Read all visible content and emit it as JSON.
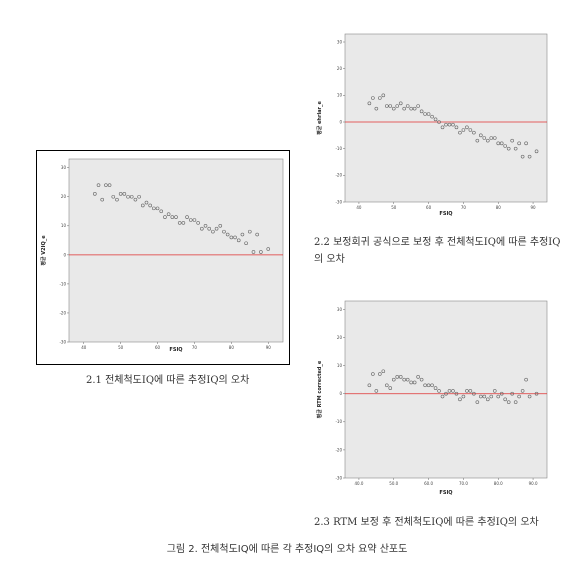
{
  "figure_caption": "그림 2. 전체척도IQ에 따른 각 추정IQ의 오차 요약 산포도",
  "panels": [
    {
      "id": "p1",
      "caption": "2.1 전체척도IQ에 따른 추정IQ의 오차"
    },
    {
      "id": "p2",
      "caption": "2.2 보정회귀 공식으로 보정 후 전체척도IQ에 따른 추정IQ의 오차"
    },
    {
      "id": "p3",
      "caption": "2.3 RTM 보정 후 전체척도IQ에 따른 추정IQ의 오차"
    }
  ],
  "chart_data": [
    {
      "type": "scatter",
      "title": "",
      "xlabel": "FSIQ",
      "ylabel": "평균 V2IQ_e",
      "xlim": [
        36,
        94
      ],
      "ylim": [
        -30,
        33
      ],
      "xticks": [
        40,
        50,
        60,
        70,
        80,
        90
      ],
      "xtick_labels": [
        "40",
        "50",
        "60",
        "70",
        "80",
        "90"
      ],
      "yticks": [
        -30,
        -20,
        -10,
        0,
        10,
        20,
        30
      ],
      "reference_line": 0,
      "colors": {
        "points": "#666666",
        "reference": "#e03030",
        "plot_bg": "#e9e9e9"
      },
      "points": [
        [
          43,
          21
        ],
        [
          44,
          24
        ],
        [
          45,
          19
        ],
        [
          46,
          24
        ],
        [
          47,
          24
        ],
        [
          48,
          20
        ],
        [
          49,
          19
        ],
        [
          50,
          21
        ],
        [
          51,
          21
        ],
        [
          52,
          20
        ],
        [
          53,
          20
        ],
        [
          54,
          19
        ],
        [
          55,
          20
        ],
        [
          56,
          17
        ],
        [
          57,
          18
        ],
        [
          58,
          17
        ],
        [
          59,
          16
        ],
        [
          60,
          16
        ],
        [
          61,
          15
        ],
        [
          62,
          13
        ],
        [
          63,
          14
        ],
        [
          64,
          13
        ],
        [
          65,
          13
        ],
        [
          66,
          11
        ],
        [
          67,
          11
        ],
        [
          68,
          13
        ],
        [
          69,
          12
        ],
        [
          70,
          12
        ],
        [
          71,
          11
        ],
        [
          72,
          9
        ],
        [
          73,
          10
        ],
        [
          74,
          9
        ],
        [
          75,
          8
        ],
        [
          76,
          9
        ],
        [
          77,
          10
        ],
        [
          78,
          8
        ],
        [
          79,
          7
        ],
        [
          80,
          6
        ],
        [
          81,
          6
        ],
        [
          82,
          5
        ],
        [
          83,
          7
        ],
        [
          84,
          4
        ],
        [
          85,
          8
        ],
        [
          86,
          1
        ],
        [
          87,
          7
        ],
        [
          88,
          1
        ],
        [
          90,
          2
        ]
      ]
    },
    {
      "type": "scatter",
      "title": "",
      "xlabel": "FSIQ",
      "ylabel": "평균 ehrlar_e",
      "xlim": [
        36,
        94
      ],
      "ylim": [
        -30,
        33
      ],
      "xticks": [
        40,
        50,
        60,
        70,
        80,
        90
      ],
      "xtick_labels": [
        "40",
        "50",
        "60",
        "70",
        "80",
        "90"
      ],
      "yticks": [
        -30,
        -20,
        -10,
        0,
        10,
        20,
        30
      ],
      "reference_line": 0,
      "colors": {
        "points": "#666666",
        "reference": "#e03030",
        "plot_bg": "#e9e9e9"
      },
      "points": [
        [
          43,
          7
        ],
        [
          44,
          9
        ],
        [
          45,
          5
        ],
        [
          46,
          9
        ],
        [
          47,
          10
        ],
        [
          48,
          6
        ],
        [
          49,
          6
        ],
        [
          50,
          5
        ],
        [
          51,
          6
        ],
        [
          52,
          7
        ],
        [
          53,
          5
        ],
        [
          54,
          6
        ],
        [
          55,
          5
        ],
        [
          56,
          5
        ],
        [
          57,
          6
        ],
        [
          58,
          4
        ],
        [
          59,
          3
        ],
        [
          60,
          3
        ],
        [
          61,
          2
        ],
        [
          62,
          1
        ],
        [
          63,
          0
        ],
        [
          64,
          -2
        ],
        [
          65,
          -1
        ],
        [
          66,
          -1
        ],
        [
          67,
          -1
        ],
        [
          68,
          -2
        ],
        [
          69,
          -4
        ],
        [
          70,
          -3
        ],
        [
          71,
          -2
        ],
        [
          72,
          -3
        ],
        [
          73,
          -4
        ],
        [
          74,
          -7
        ],
        [
          75,
          -5
        ],
        [
          76,
          -6
        ],
        [
          77,
          -7
        ],
        [
          78,
          -6
        ],
        [
          79,
          -6
        ],
        [
          80,
          -8
        ],
        [
          81,
          -8
        ],
        [
          82,
          -9
        ],
        [
          83,
          -10
        ],
        [
          84,
          -7
        ],
        [
          85,
          -10
        ],
        [
          86,
          -8
        ],
        [
          87,
          -13
        ],
        [
          88,
          -8
        ],
        [
          89,
          -13
        ],
        [
          91,
          -11
        ]
      ]
    },
    {
      "type": "scatter",
      "title": "",
      "xlabel": "FSIQ",
      "ylabel": "평균 RTM corrected_e",
      "xlim": [
        36,
        94
      ],
      "ylim": [
        -30,
        33
      ],
      "xticks": [
        40,
        50,
        60,
        70,
        80,
        90
      ],
      "xtick_labels": [
        "40.0",
        "50.0",
        "60.0",
        "70.0",
        "80.0",
        "90.0"
      ],
      "yticks": [
        -30,
        -20,
        -10,
        0,
        10,
        20,
        30
      ],
      "reference_line": 0,
      "colors": {
        "points": "#666666",
        "reference": "#e03030",
        "plot_bg": "#e9e9e9"
      },
      "points": [
        [
          43,
          3
        ],
        [
          44,
          7
        ],
        [
          45,
          1
        ],
        [
          46,
          7
        ],
        [
          47,
          8
        ],
        [
          48,
          3
        ],
        [
          49,
          2
        ],
        [
          50,
          5
        ],
        [
          51,
          6
        ],
        [
          52,
          6
        ],
        [
          53,
          5
        ],
        [
          54,
          5
        ],
        [
          55,
          4
        ],
        [
          56,
          4
        ],
        [
          57,
          6
        ],
        [
          58,
          5
        ],
        [
          59,
          3
        ],
        [
          60,
          3
        ],
        [
          61,
          3
        ],
        [
          62,
          2
        ],
        [
          63,
          1
        ],
        [
          64,
          -1
        ],
        [
          65,
          0
        ],
        [
          66,
          1
        ],
        [
          67,
          1
        ],
        [
          68,
          0
        ],
        [
          69,
          -2
        ],
        [
          70,
          -1
        ],
        [
          71,
          1
        ],
        [
          72,
          1
        ],
        [
          73,
          0
        ],
        [
          74,
          -3
        ],
        [
          75,
          -1
        ],
        [
          76,
          -1
        ],
        [
          77,
          -2
        ],
        [
          78,
          -1
        ],
        [
          79,
          1
        ],
        [
          80,
          -1
        ],
        [
          81,
          0
        ],
        [
          82,
          -2
        ],
        [
          83,
          -3
        ],
        [
          84,
          0
        ],
        [
          85,
          -3
        ],
        [
          86,
          -1
        ],
        [
          87,
          1
        ],
        [
          88,
          5
        ],
        [
          89,
          -1
        ],
        [
          91,
          0
        ]
      ]
    }
  ]
}
